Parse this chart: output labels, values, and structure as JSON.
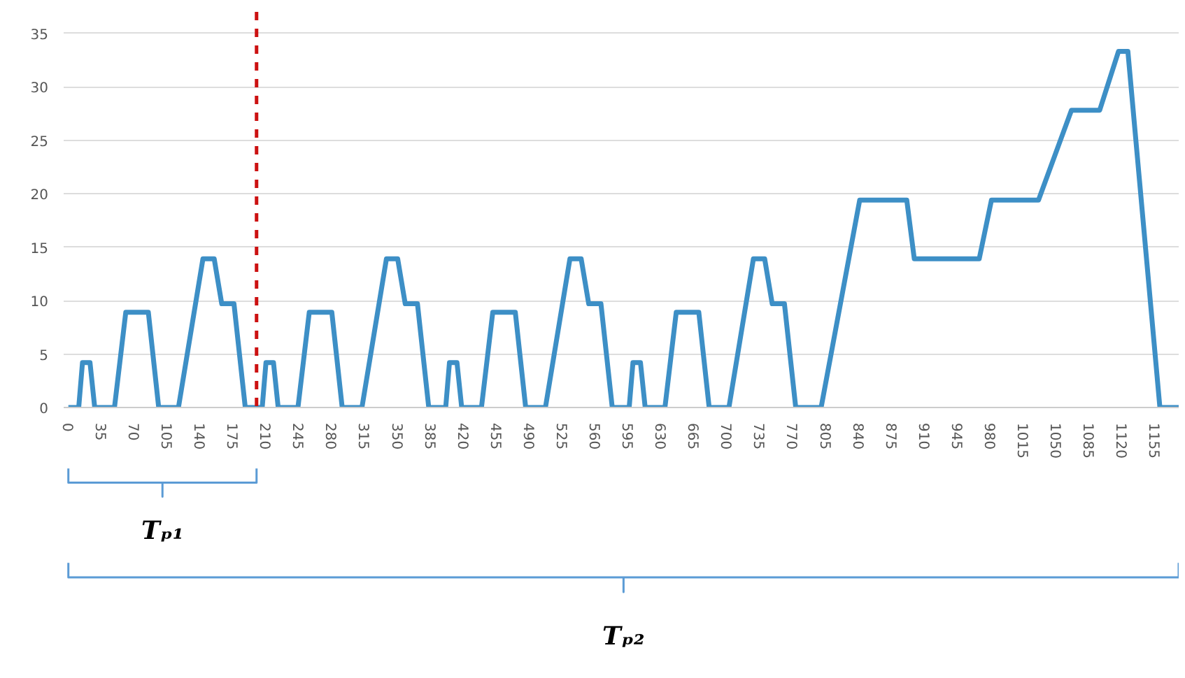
{
  "chart_data": {
    "type": "line",
    "x": [
      0,
      11,
      15,
      23,
      28,
      49,
      61,
      85,
      96,
      117,
      143,
      155,
      163,
      176,
      188,
      195,
      206,
      210,
      218,
      223,
      244,
      256,
      280,
      291,
      312,
      338,
      350,
      358,
      371,
      383,
      390,
      401,
      405,
      413,
      418,
      439,
      451,
      475,
      486,
      507,
      533,
      545,
      553,
      566,
      578,
      585,
      596,
      600,
      608,
      613,
      634,
      646,
      670,
      681,
      702,
      728,
      740,
      748,
      761,
      773,
      780,
      800,
      841,
      891,
      899,
      968,
      981,
      1031,
      1066,
      1096,
      1116,
      1126,
      1160,
      1180
    ],
    "series": [
      {
        "color": "#3d8fc6",
        "values": [
          0,
          0,
          4.2,
          4.2,
          0,
          0,
          8.9,
          8.9,
          0,
          0,
          13.9,
          13.9,
          9.7,
          9.7,
          0,
          0,
          0,
          4.2,
          4.2,
          0,
          0,
          8.9,
          8.9,
          0,
          0,
          13.9,
          13.9,
          9.7,
          9.7,
          0,
          0,
          0,
          4.2,
          4.2,
          0,
          0,
          8.9,
          8.9,
          0,
          0,
          13.9,
          13.9,
          9.7,
          9.7,
          0,
          0,
          0,
          4.2,
          4.2,
          0,
          0,
          8.9,
          8.9,
          0,
          0,
          13.9,
          13.9,
          9.7,
          9.7,
          0,
          0,
          0,
          19.4,
          19.4,
          13.9,
          13.9,
          19.4,
          19.4,
          27.8,
          27.8,
          33.3,
          33.3,
          0,
          0
        ]
      }
    ],
    "xlim": [
      -5,
      1180
    ],
    "xticks": [
      0,
      35,
      70,
      105,
      140,
      175,
      210,
      245,
      280,
      315,
      350,
      385,
      420,
      455,
      490,
      525,
      560,
      595,
      630,
      665,
      700,
      735,
      770,
      805,
      840,
      875,
      910,
      945,
      980,
      1015,
      1050,
      1085,
      1120,
      1155
    ],
    "ylim": [
      0,
      37
    ],
    "yticks": [
      0,
      5,
      10,
      15,
      20,
      25,
      30,
      35
    ],
    "grid": "y",
    "line_style": "solid",
    "ref_lines": [
      {
        "axis": "x",
        "value": 200,
        "color": "#cc1111",
        "line_style": "dashed"
      }
    ],
    "annotations": [
      "Tₚ₁",
      "Tₚ₂"
    ]
  }
}
